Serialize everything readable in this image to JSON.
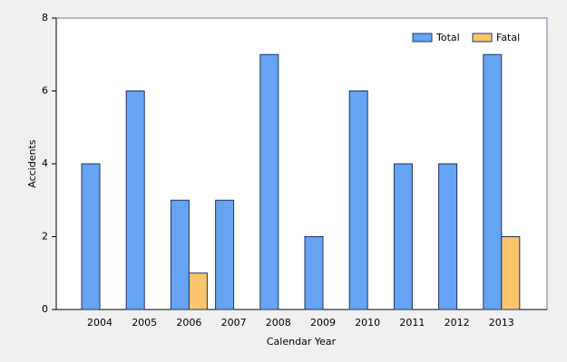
{
  "chart_data": {
    "type": "bar",
    "x_label": "Calendar Year",
    "y_label": "Accidents",
    "categories": [
      "2004",
      "2005",
      "2006",
      "2007",
      "2008",
      "2009",
      "2010",
      "2011",
      "2012",
      "2013"
    ],
    "series": [
      {
        "name": "Total",
        "color": "#66a3f2",
        "values": [
          4,
          6,
          3,
          3,
          7,
          2,
          6,
          4,
          4,
          7
        ]
      },
      {
        "name": "Fatal",
        "color": "#f9c46b",
        "values": [
          0,
          0,
          1,
          0,
          0,
          0,
          0,
          0,
          0,
          2
        ]
      }
    ],
    "ylim": [
      0,
      8
    ],
    "yticks": [
      0,
      2,
      4,
      6,
      8
    ],
    "legend": "top-right"
  }
}
